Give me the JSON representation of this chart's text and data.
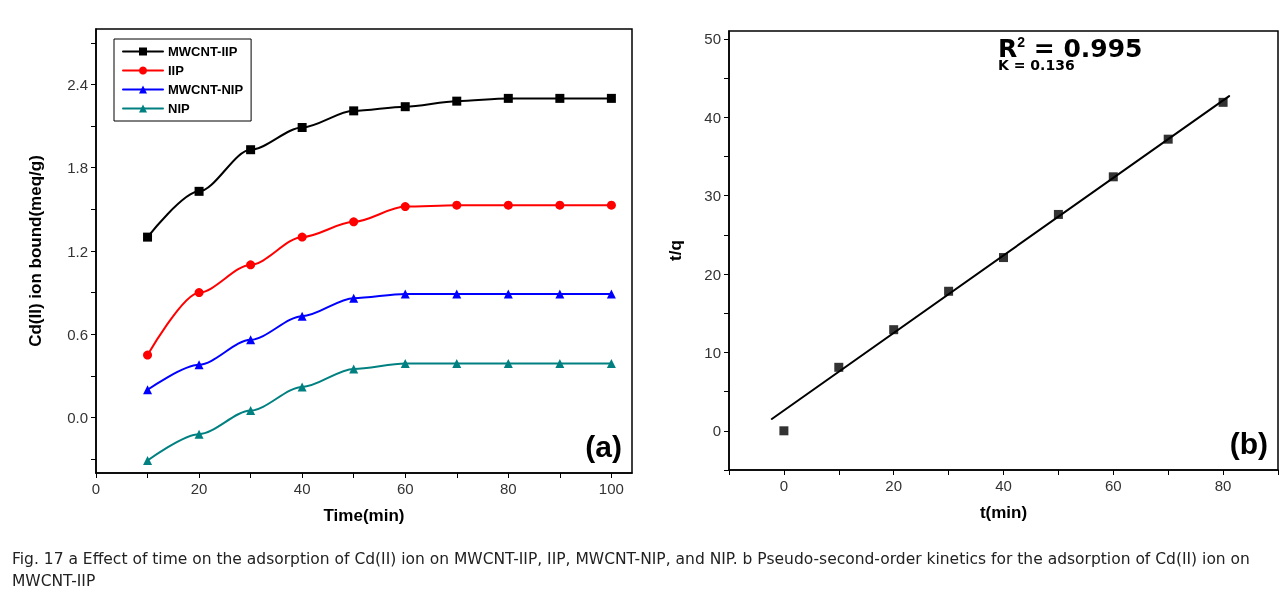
{
  "chart_data": [
    {
      "type": "line",
      "xlabel": "Time(min)",
      "ylabel": "Cd(II) ion bound(meq/g)",
      "x": [
        10,
        20,
        30,
        40,
        50,
        60,
        70,
        80,
        90,
        100
      ],
      "series": [
        {
          "name": "MWCNT-IIP",
          "color": "#000000",
          "marker": "square",
          "values": [
            1.3,
            1.63,
            1.93,
            2.09,
            2.21,
            2.24,
            2.28,
            2.3,
            2.3,
            2.3
          ]
        },
        {
          "name": "IIP",
          "color": "#ff0000",
          "marker": "circle",
          "values": [
            0.45,
            0.9,
            1.1,
            1.3,
            1.41,
            1.52,
            1.53,
            1.53,
            1.53,
            1.53
          ]
        },
        {
          "name": "MWCNT-NIP",
          "color": "#0000ff",
          "marker": "triangle",
          "values": [
            0.2,
            0.38,
            0.56,
            0.73,
            0.86,
            0.89,
            0.89,
            0.89,
            0.89,
            0.89
          ]
        },
        {
          "name": "NIP",
          "color": "#008080",
          "marker": "triangle",
          "values": [
            -0.31,
            -0.12,
            0.05,
            0.22,
            0.35,
            0.39,
            0.39,
            0.39,
            0.39,
            0.39
          ]
        }
      ],
      "xlim": [
        0,
        104
      ],
      "xticks": [
        0,
        {
          "value": 10,
          "label": null
        },
        20,
        {
          "value": 30,
          "label": null
        },
        40,
        {
          "value": 50,
          "label": null
        },
        60,
        {
          "value": 70,
          "label": null
        },
        80,
        {
          "value": 90,
          "label": null
        },
        100
      ],
      "ylim": [
        -0.4,
        2.8
      ],
      "yticks": [
        {
          "value": -0.3,
          "label": null
        },
        {
          "value": 0,
          "label": "0.0"
        },
        {
          "value": 0.3,
          "label": null
        },
        0.6,
        {
          "value": 0.9,
          "label": null
        },
        1.2,
        {
          "value": 1.5,
          "label": null
        },
        1.8,
        {
          "value": 2.1,
          "label": null
        },
        2.4,
        {
          "value": 2.7,
          "label": null
        }
      ],
      "legend": "top left",
      "grid": false,
      "line_style": "solid",
      "annotations": [
        "(a)",
        "Fig. 17 a Effect of time on the adsorption of Cd(II) ion on MWCNT-IIP, IIP, MWCNT-NIP, and NIP. b Pseudo-second-order kinetics for the adsorption of Cd(II) ion on MWCNT-IIP"
      ]
    },
    {
      "type": "scatter",
      "xlabel": "t(min)",
      "ylabel": "t/q",
      "x": [
        0,
        10,
        20,
        30,
        40,
        50,
        60,
        70,
        80
      ],
      "series": [
        {
          "color": "#000000",
          "marker": "square",
          "values": [
            0,
            8.1,
            12.9,
            17.8,
            22.1,
            27.6,
            32.4,
            37.2,
            41.9
          ]
        },
        {
          "type": "line",
          "color": "#000000",
          "marker": "none",
          "x": [
            -2.2,
            81.1
          ],
          "values": [
            1.5,
            42.7
          ]
        }
      ],
      "xlim": [
        -10,
        90
      ],
      "xticks": [
        {
          "value": -10,
          "label": null
        },
        0,
        {
          "value": 10,
          "label": null
        },
        20,
        {
          "value": 30,
          "label": null
        },
        40,
        {
          "value": 50,
          "label": null
        },
        60,
        {
          "value": 70,
          "label": null
        },
        80,
        {
          "value": 90,
          "label": null
        }
      ],
      "ylim": [
        -5,
        51
      ],
      "yticks": [
        {
          "value": -5,
          "label": null
        },
        0,
        {
          "value": 5,
          "label": null
        },
        10,
        {
          "value": 15,
          "label": null
        },
        20,
        {
          "value": 25,
          "label": null
        },
        30,
        {
          "value": 35,
          "label": null
        },
        40,
        {
          "value": 45,
          "label": null
        },
        50
      ],
      "legend": false,
      "grid": false,
      "annotations": [
        "R$^{2}$ = 0.995",
        "K = 0.136",
        "(b)"
      ]
    }
  ]
}
